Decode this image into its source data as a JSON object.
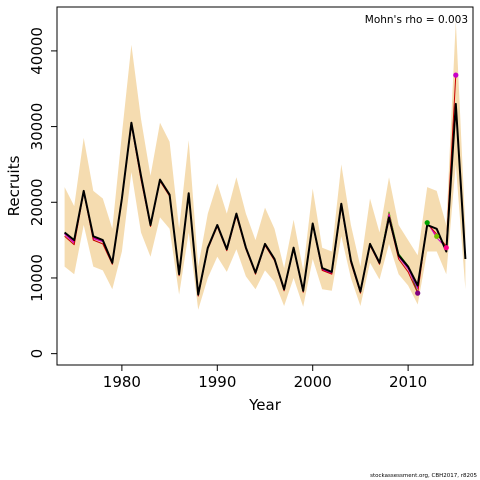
{
  "footer": "stockassessment.org, CBH2017, r8205",
  "chart_data": {
    "type": "line",
    "title": "",
    "xlabel": "Year",
    "ylabel": "Recruits",
    "annotation": "Mohn's rho = 0.003",
    "xlim": [
      1973.2,
      2016.8
    ],
    "ylim": [
      -1500,
      45800
    ],
    "xticks": [
      1980,
      1990,
      2000,
      2010
    ],
    "yticks": [
      0,
      10000,
      20000,
      30000,
      40000
    ],
    "grid": false,
    "legend": "none",
    "colors": {
      "band": "#f5dcb0",
      "main": "#000000",
      "peels": [
        "#c80000",
        "#c800c8",
        "#ff0088",
        "#76c000",
        "#00a000",
        "#800080"
      ]
    },
    "band": {
      "x": [
        1974,
        1975,
        1976,
        1977,
        1978,
        1979,
        1980,
        1981,
        1982,
        1983,
        1984,
        1985,
        1986,
        1987,
        1988,
        1989,
        1990,
        1991,
        1992,
        1993,
        1994,
        1995,
        1996,
        1997,
        1998,
        1999,
        2000,
        2001,
        2002,
        2003,
        2004,
        2005,
        2006,
        2007,
        2008,
        2009,
        2010,
        2011,
        2012,
        2013,
        2014,
        2015,
        2016
      ],
      "upper": [
        22000,
        19500,
        28500,
        21500,
        20500,
        16500,
        29000,
        40800,
        31000,
        23500,
        30500,
        28000,
        16500,
        28200,
        11500,
        18500,
        22500,
        18500,
        23300,
        18500,
        15000,
        19300,
        16500,
        11300,
        17700,
        11000,
        21800,
        14000,
        13500,
        25000,
        17000,
        11500,
        20500,
        16000,
        23300,
        17000,
        15000,
        13000,
        22000,
        21500,
        17000,
        44000,
        16500
      ],
      "lower": [
        11500,
        10500,
        17000,
        11500,
        11000,
        8500,
        13500,
        24000,
        16000,
        12800,
        18000,
        16500,
        7800,
        16000,
        5800,
        10000,
        12800,
        10800,
        13800,
        10200,
        8500,
        11000,
        9500,
        6300,
        10000,
        6200,
        12500,
        8500,
        8300,
        15500,
        10000,
        6300,
        12000,
        9800,
        14500,
        10500,
        9000,
        6500,
        13500,
        13500,
        10500,
        25000,
        8500
      ]
    },
    "series": [
      {
        "name": "",
        "x": [
          1974,
          1975,
          1976,
          1977,
          1978,
          1979,
          1980,
          1981,
          1982,
          1983,
          1984,
          1985,
          1986,
          1987,
          1988,
          1989,
          1990,
          1991,
          1992,
          1993,
          1994,
          1995,
          1996,
          1997,
          1998,
          1999,
          2000,
          2001,
          2002,
          2003,
          2004,
          2005,
          2006,
          2007,
          2008,
          2009,
          2010,
          2011,
          2012,
          2013,
          2014,
          2015,
          2016
        ],
        "y": [
          16000,
          15000,
          21500,
          15500,
          15000,
          12000,
          20500,
          30500,
          23500,
          17000,
          23000,
          21000,
          10500,
          21200,
          7800,
          14000,
          17000,
          13800,
          18500,
          14000,
          10700,
          14500,
          12500,
          8500,
          14000,
          8300,
          17200,
          11300,
          10800,
          19800,
          12300,
          8200,
          14500,
          12000,
          18000,
          13000,
          11500,
          9000,
          17000,
          16500,
          13500,
          33000,
          12500
        ]
      },
      {
        "name": "",
        "x": [
          1974,
          1975,
          1976,
          1977,
          1978,
          1979,
          1980,
          1981,
          1982,
          1983,
          1984,
          1985,
          1986,
          1987,
          1988,
          1989,
          1990,
          1991,
          1992,
          1993,
          1994,
          1995,
          1996,
          1997,
          1998,
          1999,
          2000,
          2001,
          2002,
          2003,
          2004,
          2005,
          2006,
          2007,
          2008,
          2009,
          2010,
          2011,
          2012,
          2013,
          2014,
          2015
        ],
        "y": [
          15500,
          14400,
          21300,
          15000,
          14500,
          11800,
          20300,
          30200,
          23000,
          16800,
          22800,
          20800,
          10300,
          21000,
          7600,
          13800,
          16800,
          13600,
          18200,
          13800,
          10500,
          14300,
          12300,
          8300,
          13800,
          8100,
          17000,
          11000,
          10500,
          19500,
          12000,
          8000,
          14300,
          11800,
          17800,
          12500,
          10800,
          8000,
          17200,
          15800,
          14200,
          36800
        ]
      },
      {
        "name": "",
        "x": [
          1974,
          1975,
          1976,
          1977,
          1978,
          1979,
          1980,
          1981,
          1982,
          1983,
          1984,
          1985,
          1986,
          1987,
          1988,
          1989,
          1990,
          1991,
          1992,
          1993,
          1994,
          1995,
          1996,
          1997,
          1998,
          1999,
          2000,
          2001,
          2002,
          2003,
          2004,
          2005,
          2006,
          2007,
          2008,
          2009,
          2010,
          2011,
          2012,
          2013,
          2014
        ],
        "y": [
          15800,
          14600,
          21400,
          15200,
          14800,
          11900,
          20400,
          30300,
          23200,
          16900,
          22900,
          20900,
          10400,
          21100,
          7700,
          13900,
          16900,
          13700,
          18300,
          13900,
          10600,
          14400,
          12400,
          8400,
          13900,
          8200,
          17100,
          11100,
          10600,
          19600,
          12100,
          8100,
          14400,
          11900,
          18300,
          12800,
          11200,
          8600,
          17400,
          15300,
          14000
        ]
      },
      {
        "name": "",
        "x": [
          1974,
          1975,
          1976,
          1977,
          1978,
          1979,
          1980,
          1981,
          1982,
          1983,
          1984,
          1985,
          1986,
          1987,
          1988,
          1989,
          1990,
          1991,
          1992,
          1993,
          1994,
          1995,
          1996,
          1997,
          1998,
          1999,
          2000,
          2001,
          2002,
          2003,
          2004,
          2005,
          2006,
          2007,
          2008,
          2009,
          2010,
          2011,
          2012,
          2013
        ],
        "y": [
          15900,
          14800,
          21450,
          15300,
          14900,
          11950,
          20450,
          30350,
          23300,
          16950,
          22950,
          20950,
          10450,
          21150,
          7750,
          13950,
          16950,
          13750,
          18400,
          13950,
          10650,
          14450,
          12450,
          8450,
          13950,
          8250,
          17150,
          11200,
          10700,
          19700,
          12200,
          8150,
          14450,
          11950,
          18500,
          13000,
          11400,
          8800,
          17300,
          15500
        ]
      },
      {
        "name": "",
        "x": [
          1974,
          1975,
          1976,
          1977,
          1978,
          1979,
          1980,
          1981,
          1982,
          1983,
          1984,
          1985,
          1986,
          1987,
          1988,
          1989,
          1990,
          1991,
          1992,
          1993,
          1994,
          1995,
          1996,
          1997,
          1998,
          1999,
          2000,
          2001,
          2002,
          2003,
          2004,
          2005,
          2006,
          2007,
          2008,
          2009,
          2010,
          2011,
          2012
        ],
        "y": [
          15950,
          14900,
          21480,
          15400,
          14950,
          11980,
          20480,
          30420,
          23400,
          16980,
          22980,
          20980,
          10480,
          21180,
          7780,
          13980,
          16980,
          13780,
          18450,
          13980,
          10680,
          14480,
          12480,
          8480,
          13980,
          8280,
          17180,
          11250,
          10750,
          19750,
          12250,
          8180,
          14480,
          11980,
          18600,
          13100,
          11500,
          8900,
          17300
        ]
      },
      {
        "name": "",
        "x": [
          1974,
          1975,
          1976,
          1977,
          1978,
          1979,
          1980,
          1981,
          1982,
          1983,
          1984,
          1985,
          1986,
          1987,
          1988,
          1989,
          1990,
          1991,
          1992,
          1993,
          1994,
          1995,
          1996,
          1997,
          1998,
          1999,
          2000,
          2001,
          2002,
          2003,
          2004,
          2005,
          2006,
          2007,
          2008,
          2009,
          2010,
          2011
        ],
        "y": [
          15980,
          14950,
          21490,
          15450,
          14980,
          11990,
          20490,
          30450,
          23450,
          16990,
          22990,
          20990,
          10490,
          21190,
          7790,
          13990,
          16990,
          13790,
          18480,
          13990,
          10690,
          14490,
          12490,
          8490,
          13990,
          8290,
          17190,
          11280,
          10780,
          19780,
          12280,
          8190,
          14490,
          11990,
          18700,
          13200,
          11600,
          8000
        ]
      }
    ],
    "peel_endpoints": [
      {
        "x": 2015,
        "y": 36800
      },
      {
        "x": 2014,
        "y": 14000
      },
      {
        "x": 2013,
        "y": 15500
      },
      {
        "x": 2012,
        "y": 17300
      },
      {
        "x": 2011,
        "y": 8000
      }
    ]
  }
}
